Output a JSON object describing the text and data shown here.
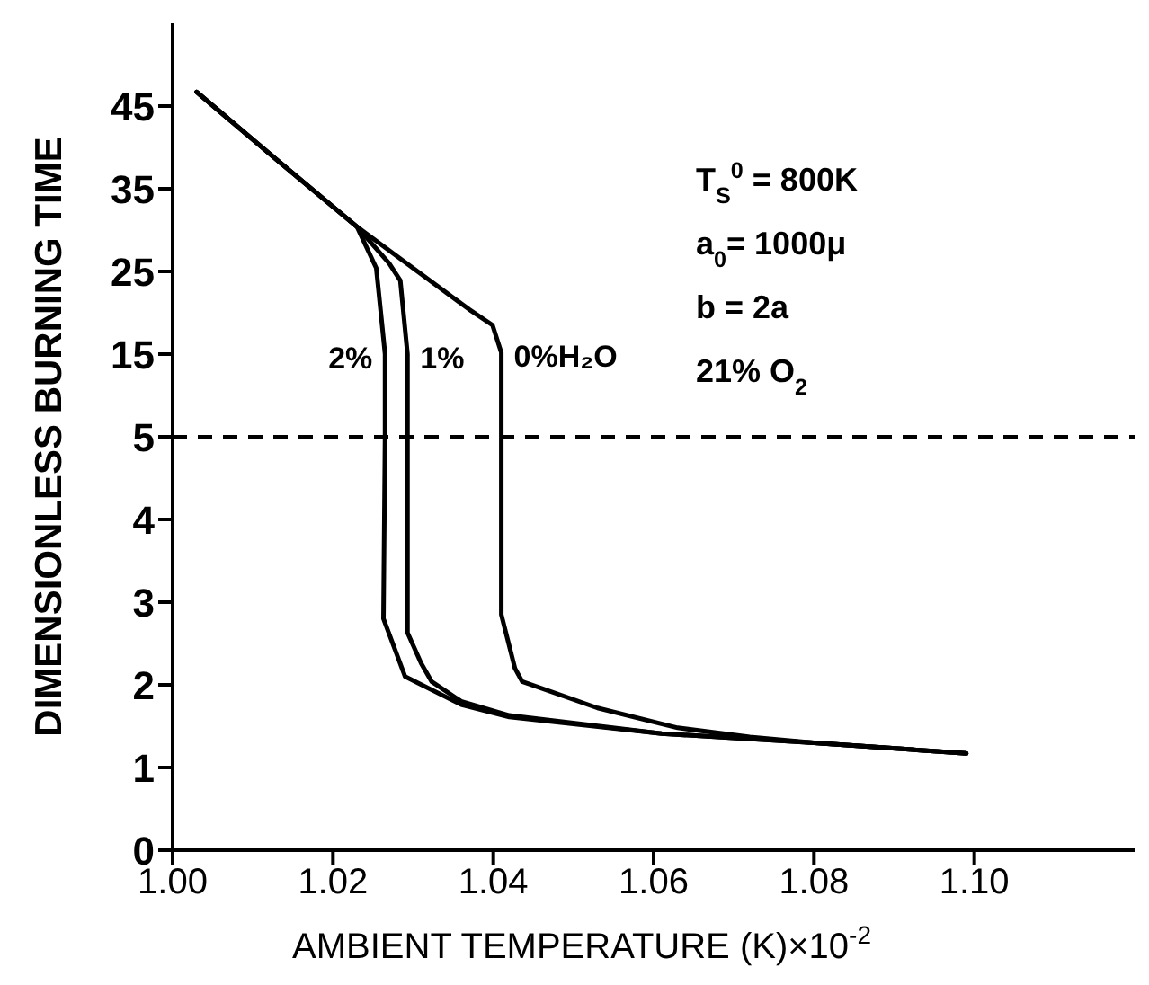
{
  "chart_data": [
    {
      "type": "line",
      "ylabel": "DIMENSIONLESS BURNING TIME",
      "tick_labels": "y",
      "xlim": [
        1.0,
        1.12
      ],
      "ylim": [
        5,
        55
      ],
      "yticks": [
        15,
        25,
        35,
        45
      ],
      "marker": "none",
      "series": [
        {
          "name": "2%",
          "color": "#000000",
          "x": [
            1.003,
            1.013,
            1.023,
            1.0254,
            1.0265,
            1.0265
          ],
          "values": [
            46.7,
            38.5,
            30.4,
            25.4,
            15,
            5
          ]
        },
        {
          "name": "1%",
          "color": "#000000",
          "x": [
            1.003,
            1.013,
            1.023,
            1.027,
            1.0284,
            1.0293,
            1.0293
          ],
          "values": [
            46.7,
            38.5,
            30.4,
            26,
            23.9,
            15,
            5
          ]
        },
        {
          "name": "0%H₂O",
          "color": "#000000",
          "x": [
            1.003,
            1.013,
            1.023,
            1.037,
            1.0399,
            1.041,
            1.041
          ],
          "values": [
            46.7,
            38.5,
            30.4,
            20.4,
            18.5,
            15.2,
            5
          ]
        }
      ],
      "annotations": [
        "T$_{S}$$^{0}$ = 800K",
        "a$_{0}$= 1000μ",
        "b = 2a",
        "21%   O$_{2}$"
      ]
    },
    {
      "type": "line",
      "xlabel": "AMBIENT TEMPERATURE (K)×10$^{-2}$",
      "xlim": [
        1.0,
        1.12
      ],
      "xticks": [
        {
          "value": 1.0,
          "label": "1.00"
        },
        {
          "value": 1.02,
          "label": "1.02"
        },
        {
          "value": 1.04,
          "label": "1.04"
        },
        {
          "value": 1.06,
          "label": "1.06"
        },
        {
          "value": 1.08,
          "label": "1.08"
        },
        {
          "value": 1.1,
          "label": "1.10"
        }
      ],
      "ylim": [
        0,
        5
      ],
      "yticks": [
        0,
        1,
        2,
        3,
        4,
        5
      ],
      "marker": "none",
      "series": [
        {
          "color": "#000000",
          "x": [
            1.0265,
            1.0263,
            1.029,
            1.036,
            1.042,
            1.061,
            1.08,
            1.099
          ],
          "values": [
            5,
            2.8,
            2.1,
            1.76,
            1.61,
            1.41,
            1.3,
            1.17
          ]
        },
        {
          "color": "#000000",
          "x": [
            1.0293,
            1.0293,
            1.031,
            1.0323,
            1.036,
            1.042,
            1.061,
            1.08,
            1.099
          ],
          "values": [
            5,
            2.63,
            2.26,
            2.04,
            1.8,
            1.63,
            1.41,
            1.3,
            1.17
          ]
        },
        {
          "color": "#000000",
          "x": [
            1.041,
            1.041,
            1.0427,
            1.0436,
            1.053,
            1.063,
            1.072,
            1.08,
            1.099
          ],
          "values": [
            5,
            2.85,
            2.2,
            2.04,
            1.72,
            1.48,
            1.37,
            1.3,
            1.17
          ]
        }
      ],
      "ref_lines": [
        {
          "axis": "y",
          "value": 5,
          "line_style": "dashed",
          "color": "#000000"
        }
      ]
    }
  ]
}
